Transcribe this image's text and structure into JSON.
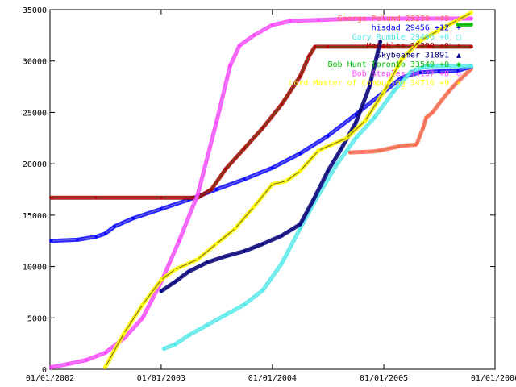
{
  "chart_data": {
    "type": "line",
    "title": "",
    "xlabel": "",
    "ylabel": "",
    "x_type": "date",
    "xlim": [
      "2002-01-01",
      "2006-01-01"
    ],
    "ylim": [
      0,
      35000
    ],
    "x_ticks": [
      "01/01/2002",
      "01/01/2003",
      "01/01/2004",
      "01/01/2005",
      "01/01/2006"
    ],
    "x_tick_dates": [
      "2002-01-01",
      "2003-01-01",
      "2004-01-01",
      "2005-01-01",
      "2006-01-01"
    ],
    "y_ticks": [
      0,
      5000,
      10000,
      15000,
      20000,
      25000,
      30000,
      35000
    ],
    "y_tick_labels": [
      "0",
      "5000",
      "10000",
      "15000",
      "20000",
      "25000",
      "30000",
      "35000"
    ],
    "grid": false,
    "legend_position": "top-right",
    "series": [
      {
        "name": "George Poland",
        "legend": "George Poland 29230 +49",
        "marker": "◇",
        "color": "#ff6a4d",
        "line_color": "#d4785a",
        "x": [
          "2004-09-12",
          "2004-10-20",
          "2004-11-25",
          "2004-12-20",
          "2005-01-20",
          "2005-02-20",
          "2005-03-20",
          "2005-04-15",
          "2005-04-20",
          "2005-05-10",
          "2005-05-20",
          "2005-06-10",
          "2005-07-05",
          "2005-08-01",
          "2005-09-01",
          "2005-10-15"
        ],
        "y": [
          21100,
          21150,
          21200,
          21300,
          21500,
          21700,
          21800,
          21850,
          22000,
          23500,
          24500,
          25000,
          26000,
          27000,
          28000,
          29230
        ]
      },
      {
        "name": "hisdad",
        "legend": "hisdad 29456 +12",
        "marker": "+",
        "color": "#0000ff",
        "line_color": "#6a5ae8",
        "x": [
          "2002-01-05",
          "2002-04-01",
          "2002-06-01",
          "2002-07-01",
          "2002-08-01",
          "2002-10-01",
          "2003-01-01",
          "2003-04-01",
          "2003-07-01",
          "2003-10-01",
          "2004-01-01",
          "2004-04-01",
          "2004-07-01",
          "2004-10-01",
          "2005-01-01",
          "2005-03-01",
          "2005-05-01",
          "2005-07-01",
          "2005-09-01",
          "2005-10-15"
        ],
        "y": [
          12500,
          12600,
          12900,
          13200,
          13900,
          14700,
          15600,
          16500,
          17500,
          18500,
          19600,
          21000,
          22700,
          24800,
          27000,
          28400,
          28900,
          29000,
          29050,
          29456
        ]
      },
      {
        "name": "Gary Rumble",
        "legend": "Gary Rumble 29496 +0",
        "marker": "□",
        "color": "#4fe8e8",
        "line_color": "#7ff0f0",
        "x": [
          "2003-01-10",
          "2003-02-15",
          "2003-04-01",
          "2003-06-01",
          "2003-08-01",
          "2003-10-01",
          "2003-12-01",
          "2004-02-01",
          "2004-04-01",
          "2004-06-01",
          "2004-08-01",
          "2004-10-01",
          "2004-12-01",
          "2005-02-01",
          "2005-04-01",
          "2005-05-10",
          "2005-06-01",
          "2005-08-01",
          "2005-10-15"
        ],
        "y": [
          2000,
          2400,
          3300,
          4300,
          5300,
          6300,
          7700,
          10300,
          13700,
          17000,
          20000,
          22500,
          24500,
          27000,
          29000,
          29400,
          29496,
          29496,
          29496
        ]
      },
      {
        "name": "Matchles",
        "legend": "Matchles 31399 +0",
        "marker": "+",
        "color": "#aa0000",
        "line_color": "#6b3a10",
        "x": [
          "2002-01-05",
          "2002-06-01",
          "2003-01-01",
          "2003-05-01",
          "2003-06-15",
          "2003-08-01",
          "2003-10-01",
          "2003-12-01",
          "2004-02-01",
          "2004-04-01",
          "2004-05-01",
          "2004-05-20",
          "2004-07-01",
          "2005-01-01",
          "2005-06-01",
          "2005-10-15"
        ],
        "y": [
          16700,
          16700,
          16700,
          16700,
          17500,
          19500,
          21500,
          23500,
          25800,
          28500,
          30500,
          31399,
          31399,
          31399,
          31399,
          31399
        ]
      },
      {
        "name": "Skybeamer",
        "legend": "Skybeamer  31891",
        "marker": "▲",
        "color": "#000080",
        "line_color": "#1e1070",
        "x": [
          "2003-01-01",
          "2003-02-15",
          "2003-04-01",
          "2003-06-01",
          "2003-08-01",
          "2003-10-01",
          "2003-12-01",
          "2004-02-01",
          "2004-04-01",
          "2004-05-15",
          "2004-07-01",
          "2004-08-15",
          "2004-10-01",
          "2004-11-15",
          "2004-12-20"
        ],
        "y": [
          7600,
          8500,
          9500,
          10400,
          11000,
          11500,
          12200,
          13000,
          14100,
          16500,
          19300,
          21500,
          24000,
          27500,
          31891
        ]
      },
      {
        "name": "Bob Hunt",
        "legend": "Bob Hunt   Toronto 33549 +0",
        "marker": "✱",
        "color": "#00c000",
        "line_color": "#00aa00",
        "x": [
          "2005-09-01",
          "2005-10-15"
        ],
        "y": [
          33549,
          33549
        ]
      },
      {
        "name": "Bob Staples",
        "legend": "Bob Staples 34137 +0",
        "marker": "◇",
        "color": "#ff40ff",
        "line_color": "#e080f0",
        "x": [
          "2002-01-05",
          "2002-03-01",
          "2002-05-01",
          "2002-07-01",
          "2002-09-01",
          "2002-11-01",
          "2003-01-01",
          "2003-03-01",
          "2003-05-01",
          "2003-07-01",
          "2003-08-15",
          "2003-09-15",
          "2003-11-01",
          "2004-01-01",
          "2004-03-01",
          "2004-06-01",
          "2004-09-01",
          "2005-01-01",
          "2005-06-01",
          "2005-10-15"
        ],
        "y": [
          200,
          500,
          900,
          1600,
          3000,
          5000,
          8500,
          12500,
          17000,
          24000,
          29500,
          31500,
          32500,
          33500,
          33900,
          34000,
          34100,
          34137,
          34137,
          34137
        ]
      },
      {
        "name": "Lord Master of Computing",
        "legend": "Lord Master of Computing 34716 +9",
        "marker": "+",
        "color": "#ffff00",
        "line_color": "#8a7a00",
        "x": [
          "2002-07-01",
          "2002-09-01",
          "2002-11-01",
          "2003-01-01",
          "2003-02-15",
          "2003-05-01",
          "2003-07-01",
          "2003-09-01",
          "2003-11-01",
          "2004-01-01",
          "2004-02-15",
          "2004-04-01",
          "2004-06-01",
          "2004-09-01",
          "2004-11-01",
          "2005-01-01",
          "2005-03-01",
          "2005-05-01",
          "2005-07-01",
          "2005-09-01",
          "2005-10-15"
        ],
        "y": [
          200,
          3500,
          6300,
          8700,
          9700,
          10700,
          12200,
          13700,
          15800,
          18000,
          18300,
          19300,
          21300,
          22500,
          24200,
          27000,
          30200,
          32000,
          33000,
          34000,
          34716
        ]
      }
    ]
  }
}
